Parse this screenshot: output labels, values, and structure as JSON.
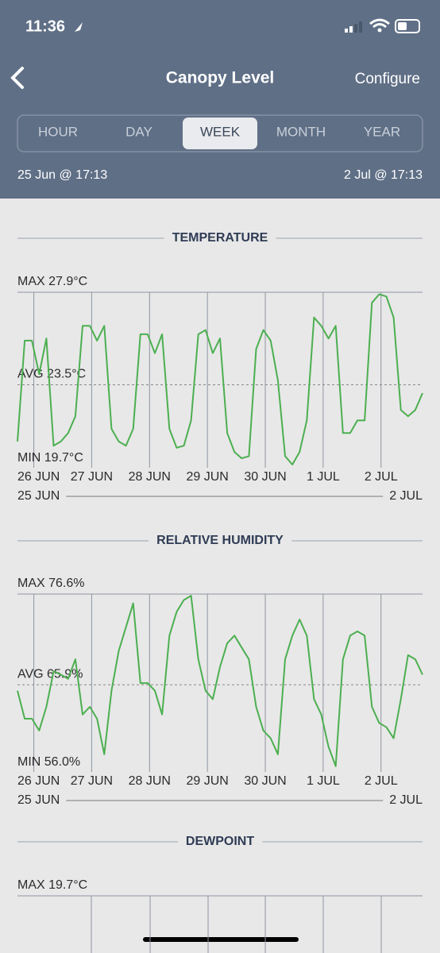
{
  "status_bar": {
    "time": "11:36"
  },
  "nav": {
    "title": "Canopy Level",
    "action": "Configure"
  },
  "tabs": {
    "items": [
      "HOUR",
      "DAY",
      "WEEK",
      "MONTH",
      "YEAR"
    ],
    "selected": 2
  },
  "date_range": {
    "start": "25 Jun @ 17:13",
    "end": "2 Jul @ 17:13"
  },
  "chart_data": [
    {
      "type": "line",
      "title": "TEMPERATURE",
      "color": "#4caf50",
      "xlim": [
        0,
        168
      ],
      "xticks": [
        {
          "value": 6.78,
          "label": "26 JUN"
        },
        {
          "value": 30.78,
          "label": "27 JUN"
        },
        {
          "value": 54.78,
          "label": "28 JUN"
        },
        {
          "value": 78.78,
          "label": "29 JUN"
        },
        {
          "value": 102.78,
          "label": "30 JUN"
        },
        {
          "value": 126.78,
          "label": "1 JUL"
        },
        {
          "value": 150.78,
          "label": "2 JUL"
        }
      ],
      "range_labels": [
        "25 JUN",
        "2 JUL"
      ],
      "ylim": [
        19.7,
        27.9
      ],
      "yticks": [
        {
          "value": 27.9,
          "label": "MAX 27.9°C"
        },
        {
          "value": 23.5,
          "label": "AVG 23.5°C"
        },
        {
          "value": 19.7,
          "label": "MIN 19.7°C"
        }
      ],
      "x": [
        0,
        3,
        6,
        9,
        12,
        15,
        18,
        21,
        24,
        27,
        30,
        33,
        36,
        39,
        42,
        45,
        48,
        51,
        54,
        57,
        60,
        63,
        66,
        69,
        72,
        75,
        78,
        81,
        84,
        87,
        90,
        93,
        96,
        99,
        102,
        105,
        108,
        111,
        114,
        117,
        120,
        123,
        126,
        129,
        132,
        135,
        138,
        141,
        144,
        147,
        150,
        153,
        156,
        159,
        162,
        165,
        168
      ],
      "values": [
        20.8,
        25.6,
        25.6,
        24.0,
        25.7,
        20.6,
        20.8,
        21.2,
        22.0,
        26.3,
        26.3,
        25.6,
        26.3,
        21.4,
        20.8,
        20.6,
        21.4,
        25.9,
        25.9,
        25.0,
        25.9,
        21.4,
        20.5,
        20.6,
        21.8,
        25.9,
        26.1,
        25.0,
        25.7,
        21.2,
        20.3,
        20.0,
        20.1,
        25.2,
        26.1,
        25.6,
        23.7,
        20.1,
        19.7,
        20.3,
        21.8,
        26.7,
        26.3,
        25.7,
        26.3,
        21.2,
        21.2,
        21.8,
        21.8,
        27.4,
        27.8,
        27.7,
        26.7,
        22.3,
        22.0,
        22.3,
        23.1
      ]
    },
    {
      "type": "line",
      "title": "RELATIVE HUMIDITY",
      "color": "#4caf50",
      "xlim": [
        0,
        168
      ],
      "xticks": [
        {
          "value": 6.78,
          "label": "26 JUN"
        },
        {
          "value": 30.78,
          "label": "27 JUN"
        },
        {
          "value": 54.78,
          "label": "28 JUN"
        },
        {
          "value": 78.78,
          "label": "29 JUN"
        },
        {
          "value": 102.78,
          "label": "30 JUN"
        },
        {
          "value": 126.78,
          "label": "1 JUL"
        },
        {
          "value": 150.78,
          "label": "2 JUL"
        }
      ],
      "range_labels": [
        "25 JUN",
        "2 JUL"
      ],
      "ylim": [
        56.0,
        76.6
      ],
      "yticks": [
        {
          "value": 76.6,
          "label": "MAX 76.6%"
        },
        {
          "value": 65.9,
          "label": "AVG 65.9%"
        },
        {
          "value": 56.0,
          "label": "MIN 56.0%"
        }
      ],
      "x": [
        0,
        3,
        6,
        9,
        12,
        15,
        18,
        21,
        24,
        27,
        30,
        33,
        36,
        39,
        42,
        45,
        48,
        51,
        54,
        57,
        60,
        63,
        66,
        69,
        72,
        75,
        78,
        81,
        84,
        87,
        90,
        93,
        96,
        99,
        102,
        105,
        108,
        111,
        114,
        117,
        120,
        123,
        126,
        129,
        132,
        135,
        138,
        141,
        144,
        147,
        150,
        153,
        156,
        159,
        162,
        165,
        168
      ],
      "values": [
        65.2,
        61.9,
        61.9,
        60.5,
        63.3,
        67.5,
        67.1,
        66.6,
        68.9,
        62.4,
        63.3,
        61.9,
        57.7,
        65.2,
        69.9,
        72.7,
        75.5,
        66.1,
        66.1,
        65.2,
        62.4,
        71.7,
        74.5,
        75.9,
        76.4,
        68.9,
        65.2,
        64.2,
        68.0,
        70.8,
        71.7,
        70.3,
        68.9,
        63.3,
        60.5,
        59.6,
        57.7,
        68.9,
        71.7,
        73.6,
        71.7,
        64.2,
        62.4,
        58.6,
        56.3,
        68.9,
        71.7,
        72.2,
        71.7,
        63.3,
        61.4,
        60.9,
        59.6,
        64.2,
        69.4,
        68.9,
        67.1
      ]
    },
    {
      "type": "line",
      "title": "DEWPOINT",
      "yticks": [
        {
          "value": 19.7,
          "label": "MAX 19.7°C"
        }
      ]
    }
  ]
}
